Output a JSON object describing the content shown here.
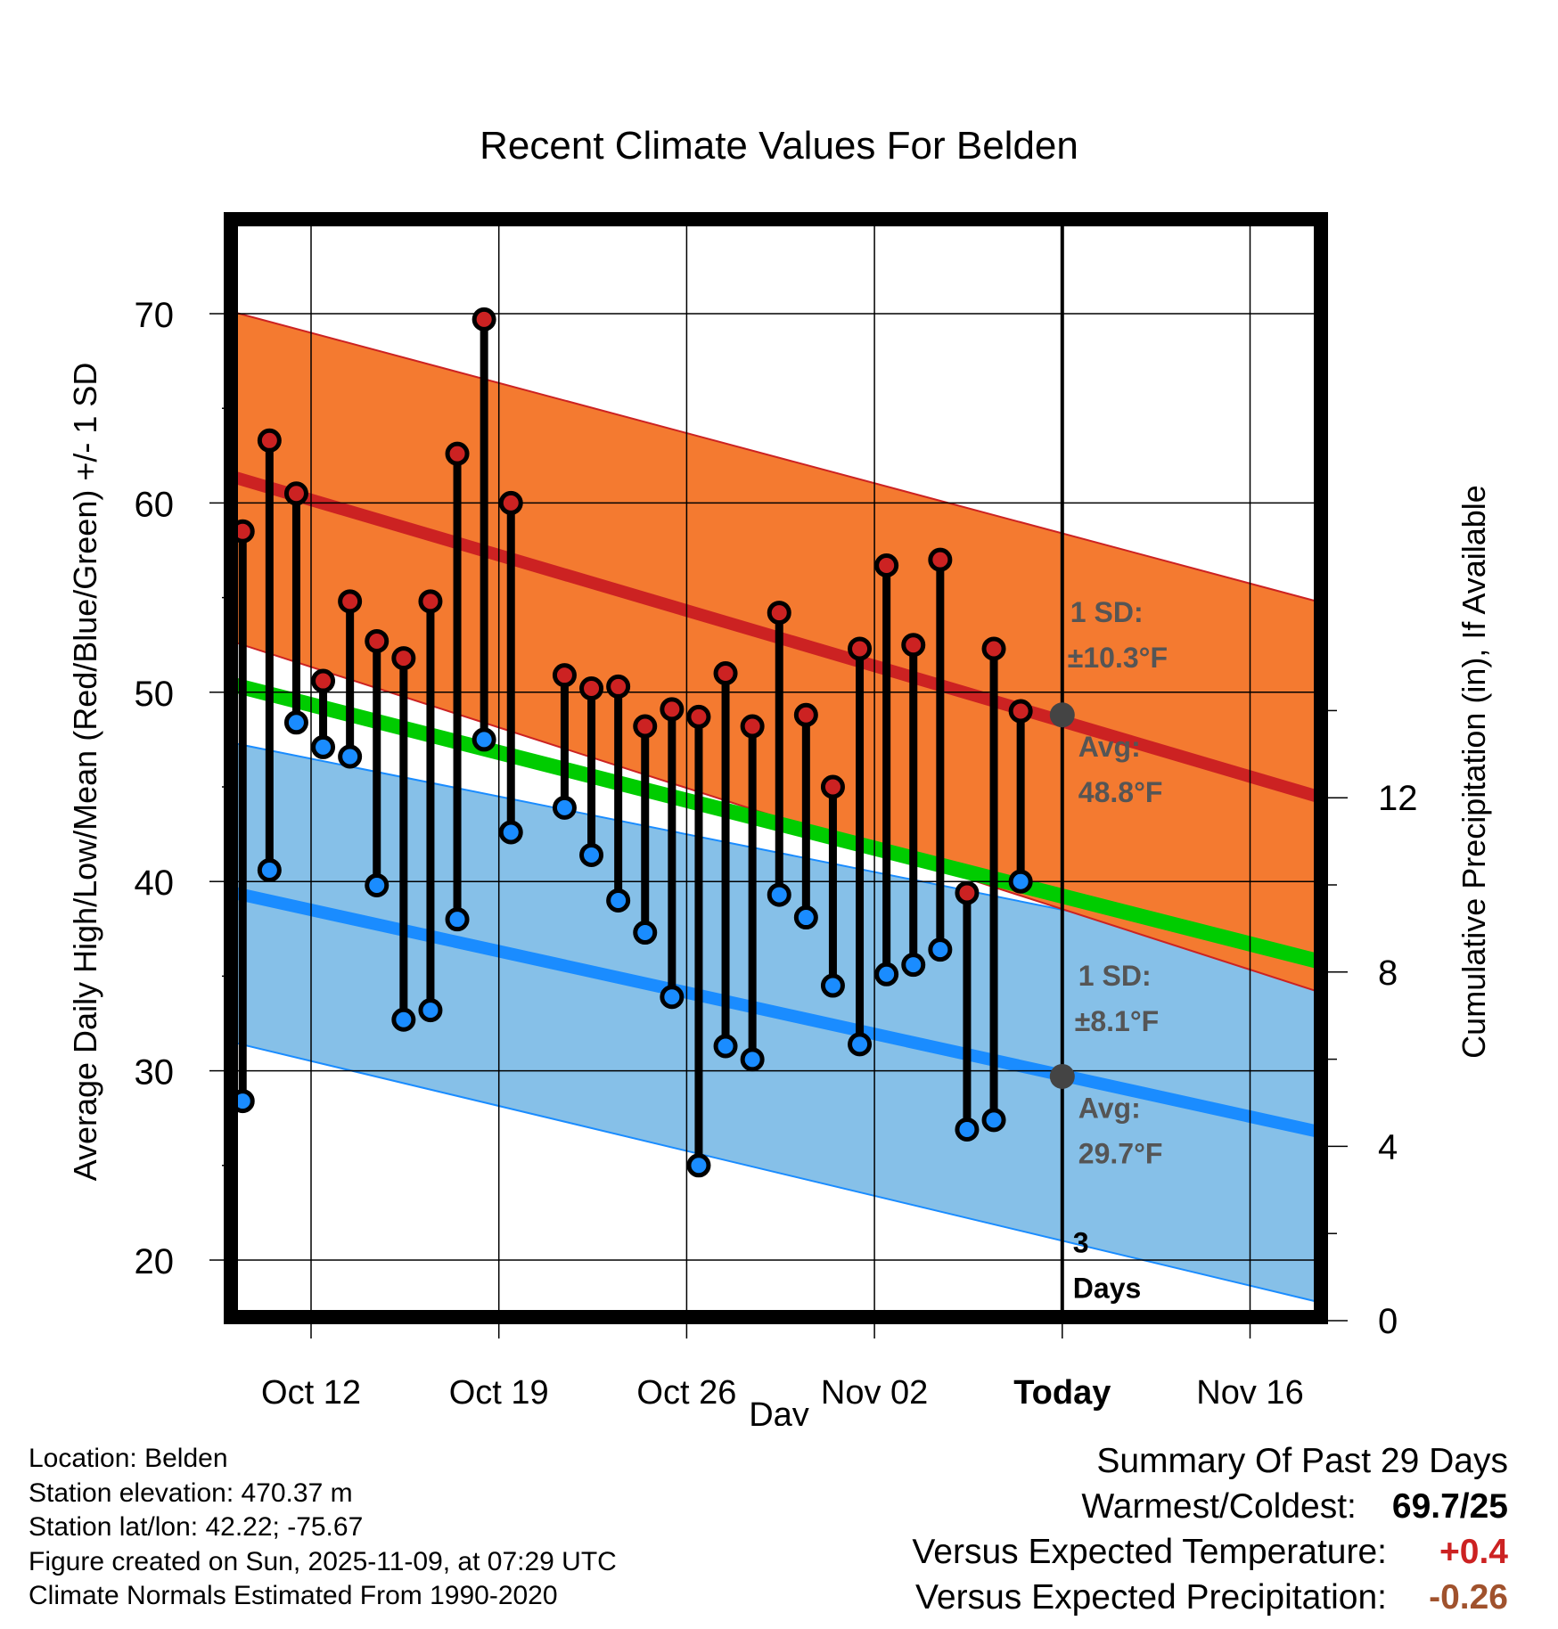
{
  "chart_data": {
    "type": "line",
    "title": "Recent Climate Values For Belden",
    "xlabel": "Day",
    "ylabel": "Average Daily High/Low/Mean (Red/Blue/Green) +/- 1 SD",
    "ylabel_right": "Cumulative Precipitation (in), If Available",
    "ylim": [
      17,
      75
    ],
    "xlim": [
      -3.2,
      37.5
    ],
    "x_ticks": [
      {
        "day": 0,
        "label": "Oct 12"
      },
      {
        "day": 7,
        "label": "Oct 19"
      },
      {
        "day": 14,
        "label": "Oct 26"
      },
      {
        "day": 21,
        "label": "Nov 02"
      },
      {
        "day": 28,
        "label": "Today"
      },
      {
        "day": 35,
        "label": "Nov 16"
      }
    ],
    "y_ticks": [
      20,
      30,
      40,
      50,
      60,
      70
    ],
    "y_right_ticks": [
      0,
      4,
      8,
      12
    ],
    "normals": {
      "high": {
        "start": 61.5,
        "end": 44.5,
        "sd_start": 8.7,
        "sd_end": 10.3,
        "color": "#cc2222",
        "band_color": "#f47a30"
      },
      "low": {
        "start": 39.5,
        "end": 26.8,
        "sd_start": 7.9,
        "sd_end": 9.0,
        "color": "#1a8cff",
        "band_color": "#86c0e8"
      },
      "mean": {
        "start": 50.5,
        "end": 35.8,
        "color": "#00cc00"
      }
    },
    "series": [
      {
        "name": "High",
        "color": "#cc2222",
        "values": [
          58.5,
          63.3,
          60.5,
          50.6,
          54.8,
          52.7,
          51.8,
          54.8,
          62.6,
          69.7,
          60.0,
          null,
          50.9,
          50.2,
          50.3,
          48.2,
          49.1,
          48.7,
          51.0,
          48.2,
          54.2,
          48.8,
          45.0,
          52.3,
          56.7,
          52.5,
          57.0,
          39.4,
          52.3,
          49.0
        ]
      },
      {
        "name": "Low",
        "color": "#1a8cff",
        "values": [
          28.4,
          40.6,
          48.4,
          47.1,
          46.6,
          39.8,
          32.7,
          33.2,
          38.0,
          47.5,
          42.6,
          null,
          43.9,
          41.4,
          39.0,
          37.3,
          33.9,
          25.0,
          31.3,
          30.6,
          39.3,
          38.1,
          34.5,
          31.4,
          35.1,
          35.6,
          36.4,
          26.9,
          27.4,
          40.0
        ]
      }
    ],
    "today_day": 28,
    "today_label_line1": "3",
    "today_label_line2": "Days",
    "annotations": {
      "high_sd_line1": "1 SD:",
      "high_sd_line2": "±10.3°F",
      "high_avg_line1": "Avg:",
      "high_avg_line2": "48.8°F",
      "high_avg_value": 48.8,
      "low_sd_line1": "1 SD:",
      "low_sd_line2": "±8.1°F",
      "low_avg_line1": "Avg:",
      "low_avg_line2": "29.7°F",
      "low_avg_value": 29.7
    }
  },
  "info": {
    "location": "Location: Belden",
    "elevation": "Station elevation: 470.37 m",
    "latlon": "Station lat/lon: 42.22; -75.67",
    "created": "Figure created on Sun, 2025-11-09, at 07:29 UTC",
    "normals": "Climate Normals Estimated From 1990-2020"
  },
  "summary": {
    "title": "Summary Of Past 29 Days",
    "warm_cold_label": "Warmest/Coldest:",
    "warm_cold_value": "69.7/25",
    "temp_label": "Versus Expected Temperature:",
    "temp_value": "+0.4",
    "temp_color": "#cc2222",
    "precip_label": "Versus Expected Precipitation:",
    "precip_value": "-0.26",
    "precip_color": "#a0522d"
  }
}
